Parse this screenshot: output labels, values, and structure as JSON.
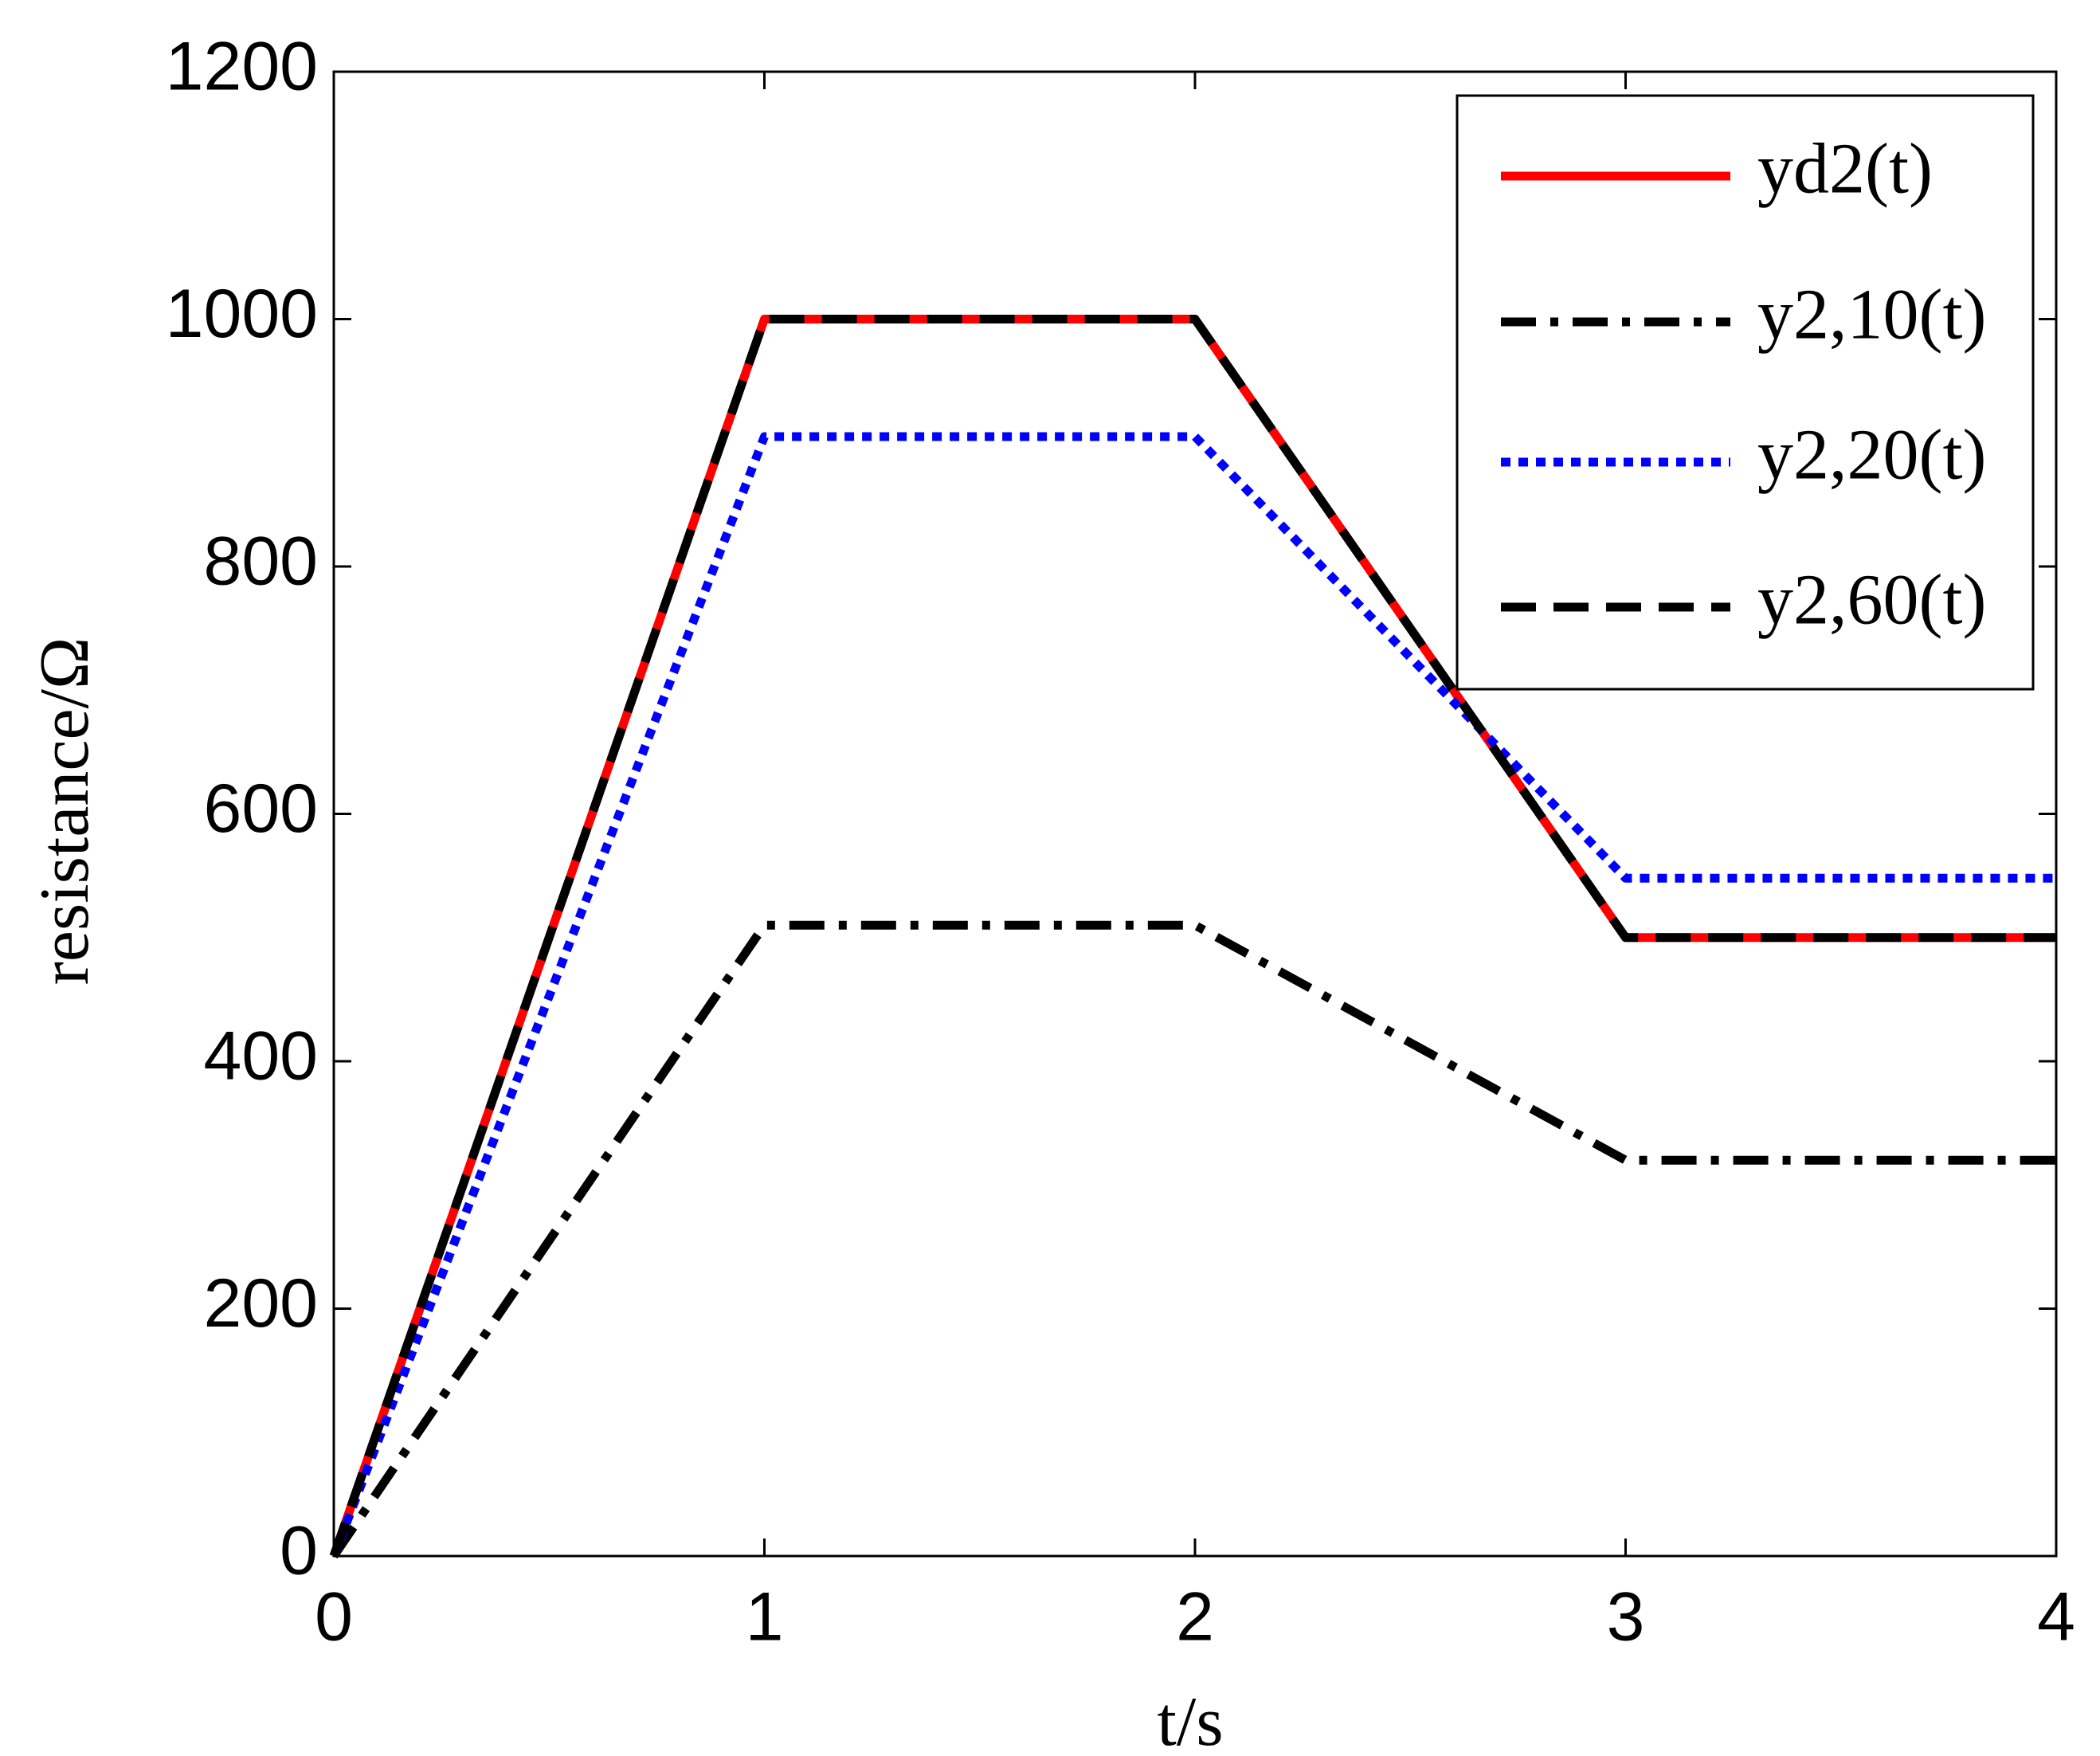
{
  "chart_data": {
    "type": "line",
    "x_label": "t/s",
    "y_label": "resistance/Ω",
    "x": [
      0,
      1,
      2,
      3,
      4
    ],
    "series": [
      {
        "name": "yd2(t)",
        "color": "#ff0000",
        "dash": "solid",
        "values": [
          0,
          1000,
          1000,
          500,
          500
        ]
      },
      {
        "name": "y2,10(t)",
        "color": "#000000",
        "dash": "dashdot",
        "values": [
          0,
          510,
          510,
          320,
          320
        ]
      },
      {
        "name": "y2,20(t)",
        "color": "#0000ff",
        "dash": "dotted",
        "values": [
          0,
          905,
          905,
          548,
          548
        ]
      },
      {
        "name": "y2,60(t)",
        "color": "#000000",
        "dash": "dashed",
        "values": [
          0,
          1000,
          1000,
          500,
          500
        ]
      }
    ],
    "xlim": [
      0,
      4
    ],
    "xticks": [
      0,
      1,
      2,
      3,
      4
    ],
    "ylim": [
      0,
      1200
    ],
    "yticks": [
      0,
      200,
      400,
      600,
      800,
      1000,
      1200
    ],
    "grid": false,
    "legend": "upper right"
  }
}
